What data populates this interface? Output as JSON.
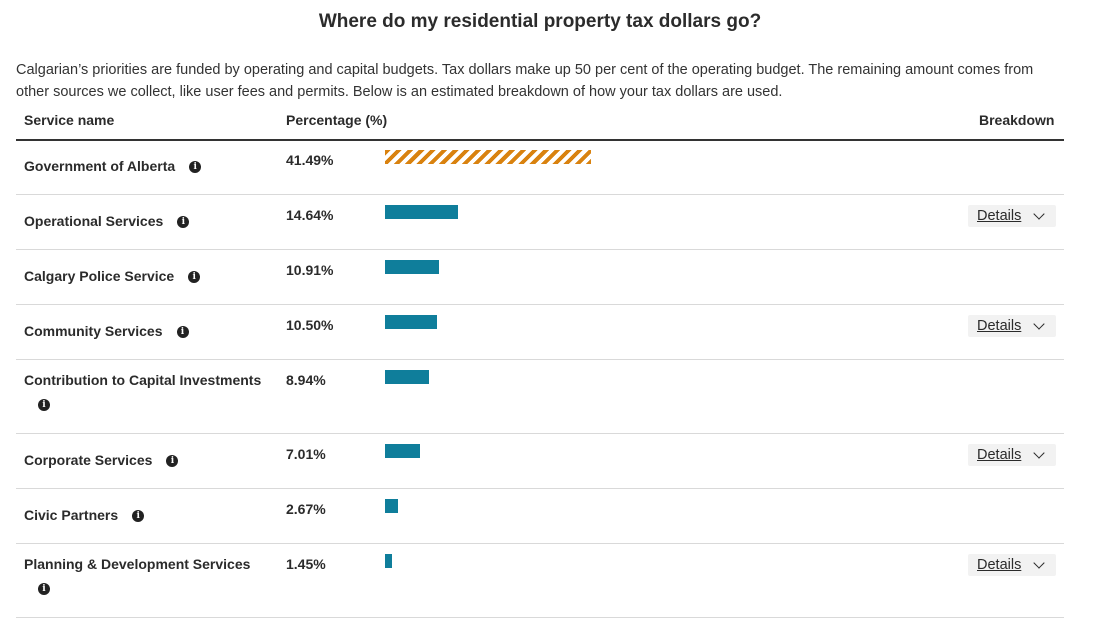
{
  "title": "Where do my residential property tax dollars go?",
  "intro": "Calgarian’s priorities are funded by operating and capital budgets. Tax dollars make up 50 per cent of the operating budget. The remaining amount comes from other sources we collect, like user fees and permits. Below is an estimated breakdown of how your tax dollars are used.",
  "headers": {
    "service": "Service name",
    "percentage": "Percentage (%)",
    "breakdown": "Breakdown"
  },
  "details_label": "Details",
  "colors": {
    "bar": "#0f7e9b",
    "government_bar": "#d9820f"
  },
  "chart_data": {
    "type": "bar",
    "orientation": "horizontal",
    "categories": [
      "Government of Alberta",
      "Operational Services",
      "Calgary Police Service",
      "Community Services",
      "Contribution to Capital Investments",
      "Corporate Services",
      "Civic Partners",
      "Planning & Development Services"
    ],
    "values": [
      41.49,
      14.64,
      10.91,
      10.5,
      8.94,
      7.01,
      2.67,
      1.45
    ],
    "value_labels": [
      "41.49%",
      "14.64%",
      "10.91%",
      "10.50%",
      "8.94%",
      "7.01%",
      "2.67%",
      "1.45%"
    ],
    "has_details": [
      false,
      true,
      false,
      true,
      false,
      true,
      false,
      true
    ],
    "ylabel": "Percentage (%)"
  }
}
